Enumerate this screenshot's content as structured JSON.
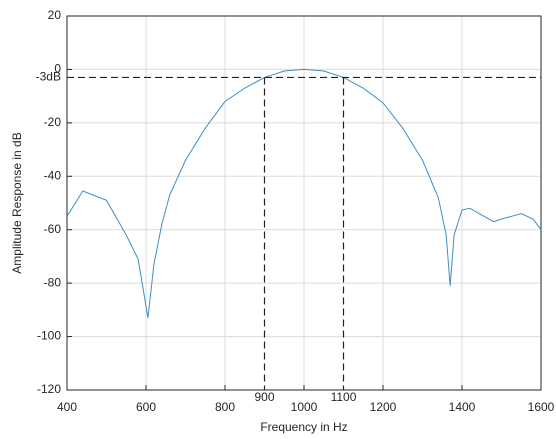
{
  "chart_data": {
    "type": "line",
    "x_label": "Frequency in Hz",
    "y_label": "Amplitude Response in dB",
    "x": [
      400,
      440,
      500,
      550,
      580,
      605,
      620,
      640,
      660,
      700,
      750,
      800,
      850,
      900,
      950,
      1000,
      1050,
      1100,
      1150,
      1200,
      1250,
      1300,
      1340,
      1360,
      1370,
      1380,
      1400,
      1420,
      1450,
      1480,
      1500,
      1550,
      1580,
      1600
    ],
    "series": [
      {
        "color": "#3b8fc4",
        "values": [
          -55,
          -45.5,
          -49,
          -62,
          -71,
          -93,
          -73,
          -58,
          -47,
          -34,
          -22,
          -12,
          -7,
          -3,
          -0.6,
          0,
          -0.6,
          -3,
          -7,
          -12.5,
          -22,
          -34,
          -48,
          -62,
          -81,
          -62,
          -52.6,
          -52,
          -54.5,
          -57,
          -56,
          -54,
          -56,
          -60
        ]
      }
    ],
    "xlim": [
      400,
      1600
    ],
    "xticks": [
      400,
      600,
      800,
      1000,
      1200,
      1400,
      1600
    ],
    "ylim": [
      -120,
      20
    ],
    "yticks": [
      -120,
      -100,
      -80,
      -60,
      -40,
      -20,
      0,
      20
    ],
    "grid": true,
    "reference_lines": {
      "y": -3,
      "y_label": "-3dB",
      "x": [
        900,
        1100
      ]
    }
  }
}
